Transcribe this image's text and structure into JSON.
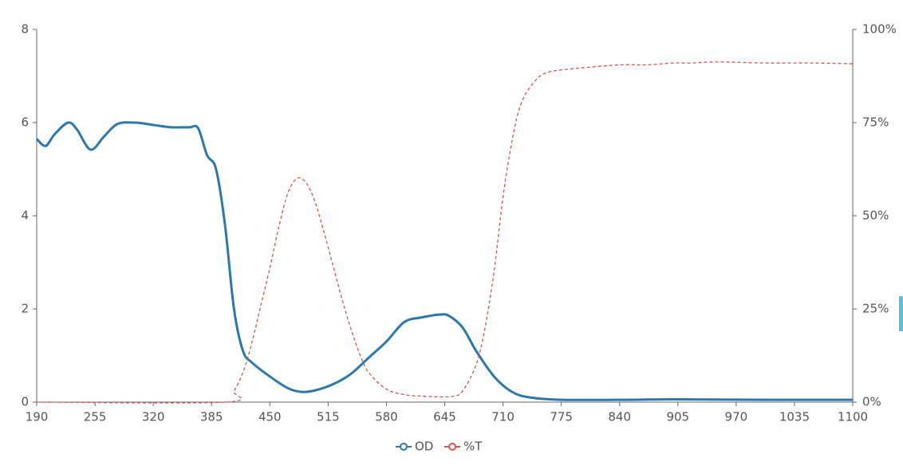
{
  "chart_data": {
    "type": "line",
    "xlim": [
      190,
      1100
    ],
    "xticks": [
      190,
      255,
      320,
      385,
      450,
      515,
      580,
      645,
      710,
      775,
      840,
      905,
      970,
      1035,
      1100
    ],
    "ylim": [
      0,
      8
    ],
    "yticks": [
      0,
      2,
      4,
      6,
      8
    ],
    "y2lim": [
      0,
      100
    ],
    "y2ticks": [
      {
        "value": 0,
        "label": "0%"
      },
      {
        "value": 25,
        "label": "25%"
      },
      {
        "value": 50,
        "label": "50%"
      },
      {
        "value": 75,
        "label": "75%"
      },
      {
        "value": 100,
        "label": "100%"
      }
    ],
    "legend": "bottom",
    "series": [
      {
        "name": "OD",
        "color": "#2a78ad",
        "dashed": false,
        "x": [
          190,
          200,
          210,
          225,
          235,
          250,
          265,
          280,
          300,
          320,
          340,
          360,
          370,
          380,
          390,
          400,
          410,
          420,
          430,
          450,
          470,
          485,
          500,
          520,
          540,
          560,
          580,
          600,
          620,
          640,
          650,
          665,
          680,
          700,
          720,
          740,
          775,
          850,
          900,
          1000,
          1100
        ],
        "values": [
          5.65,
          5.5,
          5.75,
          6.0,
          5.85,
          5.42,
          5.7,
          5.97,
          6.0,
          5.95,
          5.9,
          5.9,
          5.88,
          5.3,
          5.0,
          3.8,
          2.0,
          1.1,
          0.85,
          0.55,
          0.3,
          0.22,
          0.25,
          0.38,
          0.6,
          0.95,
          1.3,
          1.72,
          1.82,
          1.88,
          1.85,
          1.6,
          1.1,
          0.55,
          0.22,
          0.1,
          0.05,
          0.05,
          0.06,
          0.05,
          0.05
        ]
      },
      {
        "name": "%T",
        "color": "#d9534f",
        "dashed": true,
        "axis": "y2",
        "x": [
          190,
          400,
          410,
          420,
          430,
          440,
          450,
          460,
          470,
          480,
          490,
          500,
          510,
          520,
          530,
          540,
          550,
          560,
          580,
          600,
          620,
          640,
          655,
          665,
          680,
          690,
          700,
          710,
          720,
          730,
          745,
          760,
          790,
          840,
          870,
          900,
          920,
          950,
          1000,
          1050,
          1100
        ],
        "values": [
          0,
          0,
          3,
          8,
          16,
          26,
          36,
          47,
          56,
          60,
          59,
          54,
          46,
          37,
          28,
          20,
          13,
          8,
          3.5,
          2,
          1.6,
          1.4,
          1.6,
          3,
          10,
          20,
          35,
          55,
          70,
          80,
          86,
          88.5,
          89.5,
          90.5,
          90.5,
          91,
          91,
          91.3,
          91,
          91,
          90.8
        ]
      }
    ]
  }
}
